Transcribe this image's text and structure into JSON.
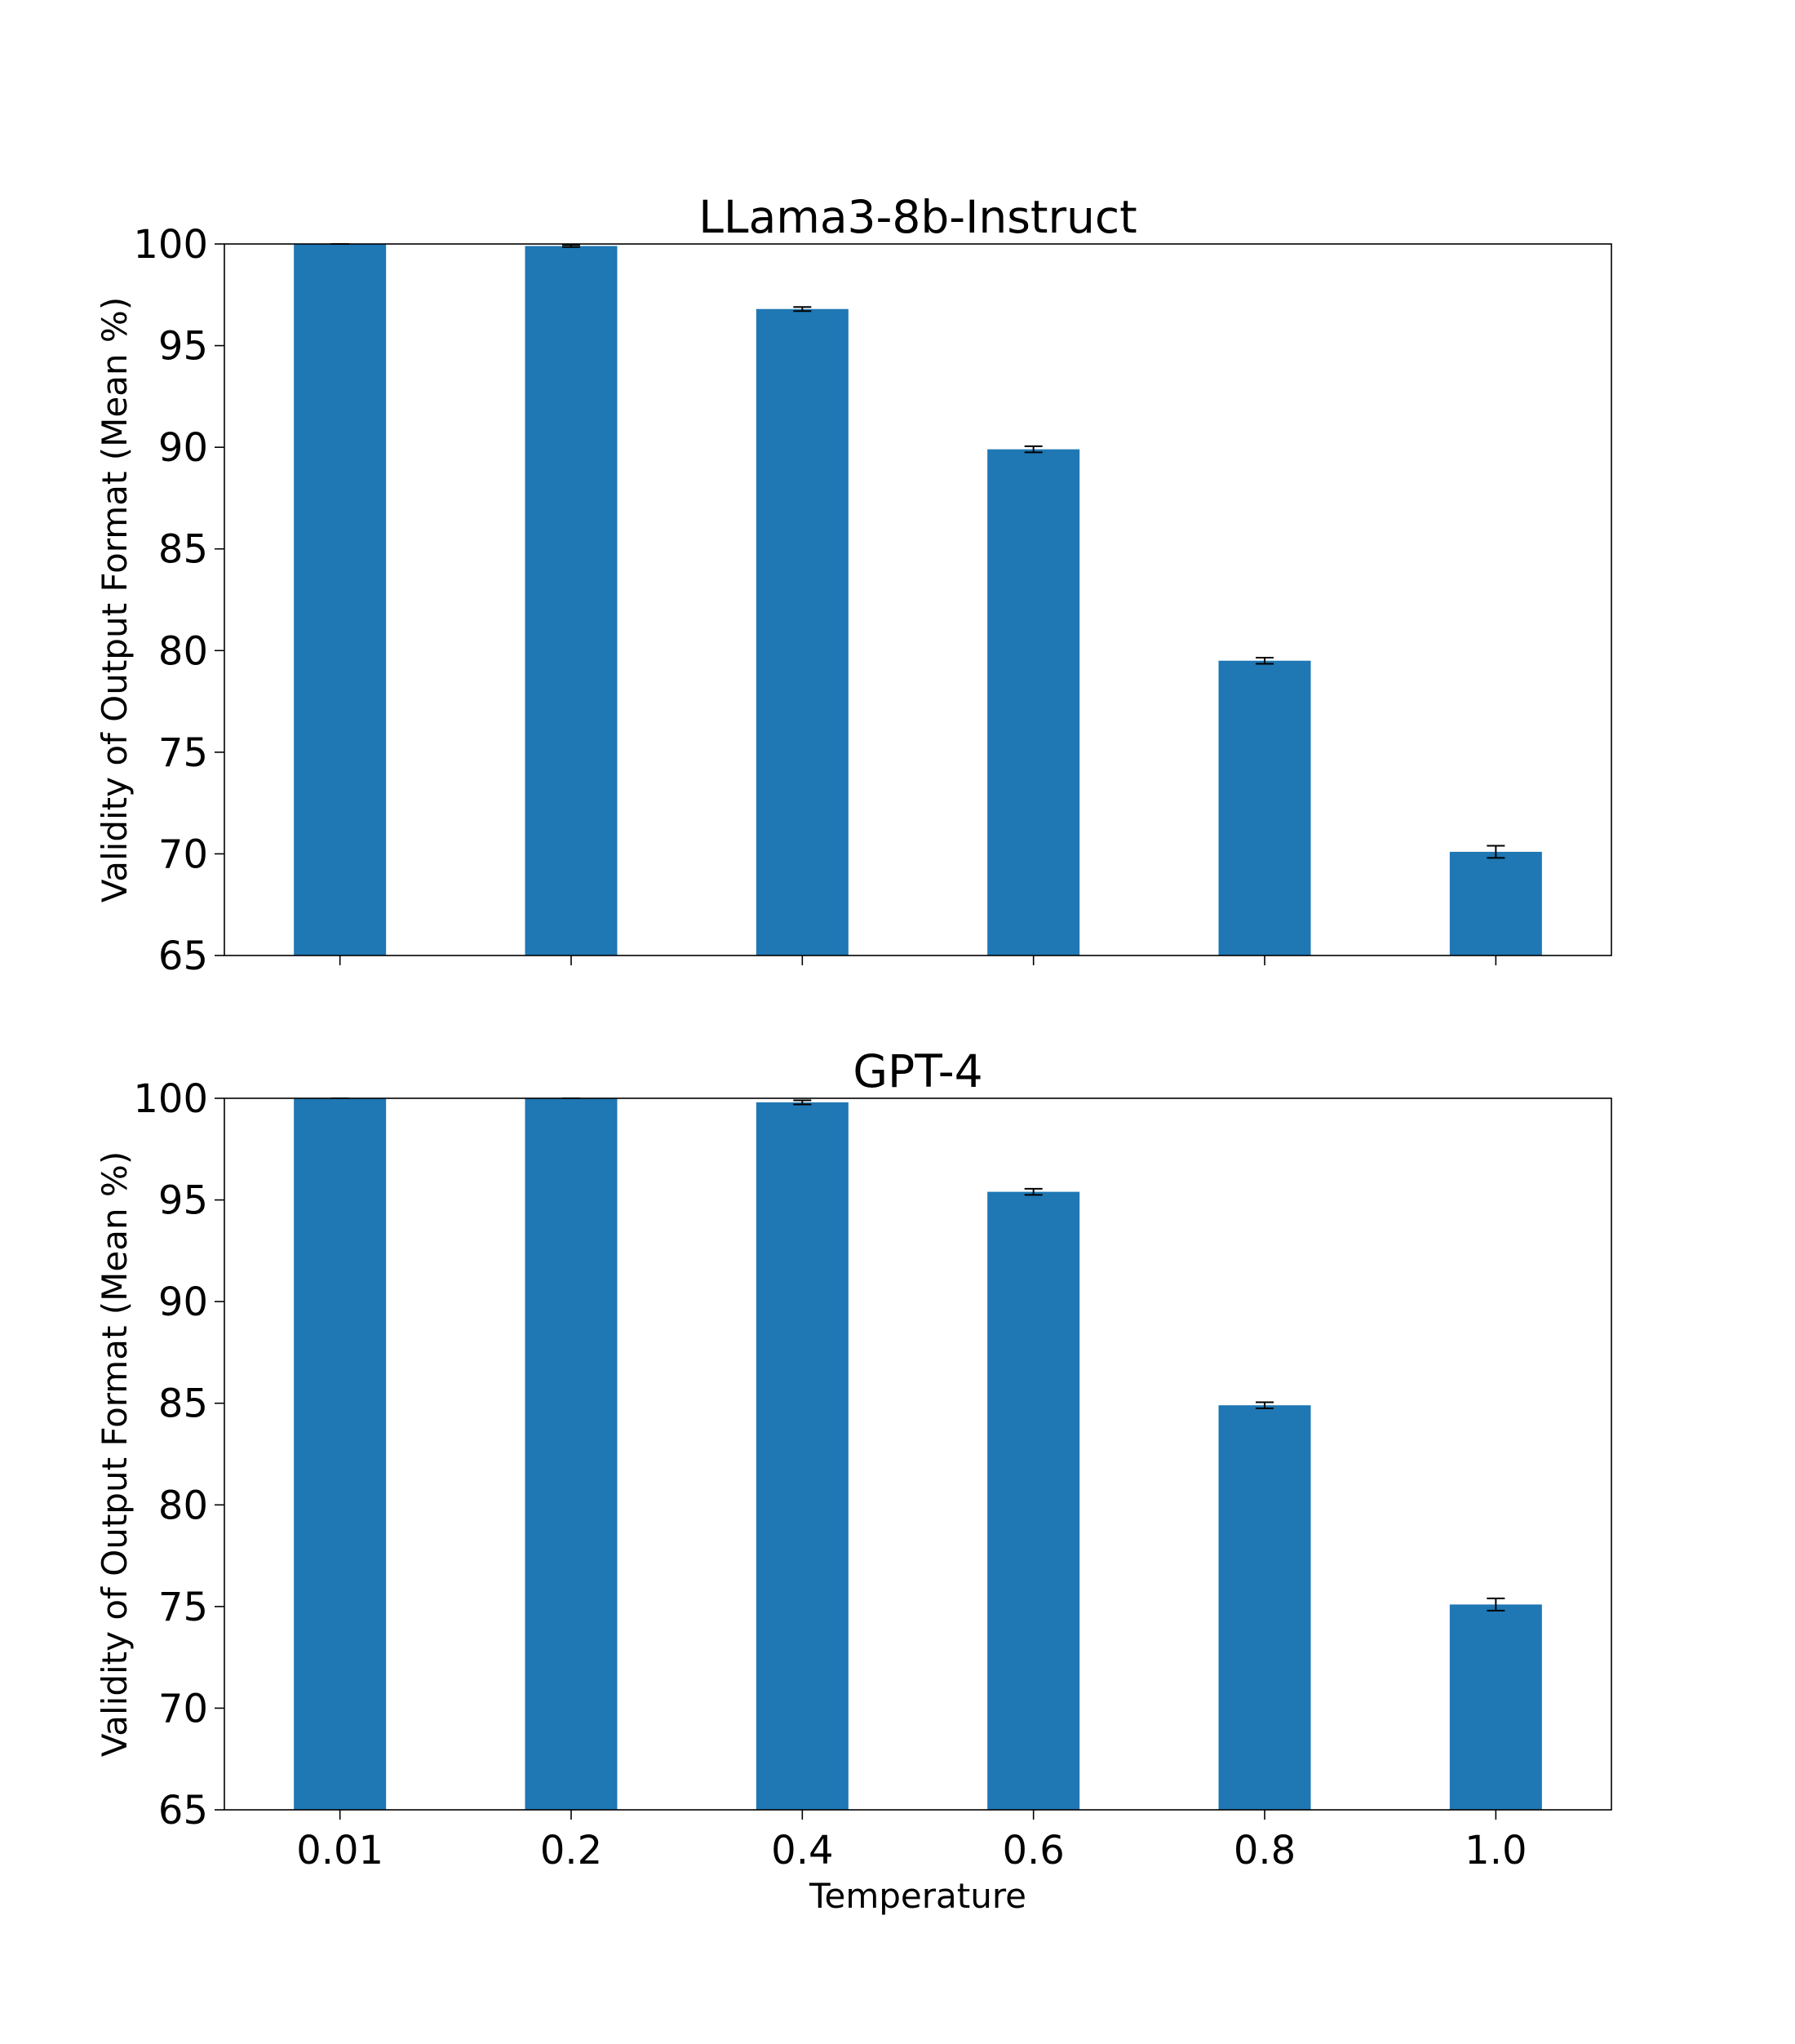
{
  "colors": {
    "bar": "#1f77b4",
    "errorbar": "#000000",
    "frame": "#000000",
    "background": "#ffffff"
  },
  "chart_data": [
    {
      "type": "bar",
      "title": "LLama3-8b-Instruct",
      "ylabel": "Validity of Output Format (Mean %)",
      "xlabel": "",
      "categories": [
        "0.01",
        "0.2",
        "0.4",
        "0.6",
        "0.8",
        "1.0"
      ],
      "values": [
        100.0,
        99.9,
        96.8,
        89.9,
        79.5,
        70.1
      ],
      "errors": [
        0.0,
        0.05,
        0.1,
        0.15,
        0.15,
        0.3
      ],
      "ylim": [
        65,
        100
      ],
      "yticks": [
        "65",
        "70",
        "75",
        "80",
        "85",
        "90",
        "95",
        "100"
      ],
      "show_x_tick_labels": false,
      "grid": false
    },
    {
      "type": "bar",
      "title": "GPT-4",
      "ylabel": "Validity of Output Format (Mean %)",
      "xlabel": "Temperature",
      "categories": [
        "0.01",
        "0.2",
        "0.4",
        "0.6",
        "0.8",
        "1.0"
      ],
      "values": [
        100.0,
        100.0,
        99.8,
        95.4,
        84.9,
        75.1
      ],
      "errors": [
        0.0,
        0.0,
        0.1,
        0.15,
        0.15,
        0.3
      ],
      "ylim": [
        65,
        100
      ],
      "yticks": [
        "65",
        "70",
        "75",
        "80",
        "85",
        "90",
        "95",
        "100"
      ],
      "show_x_tick_labels": true,
      "grid": false
    }
  ]
}
